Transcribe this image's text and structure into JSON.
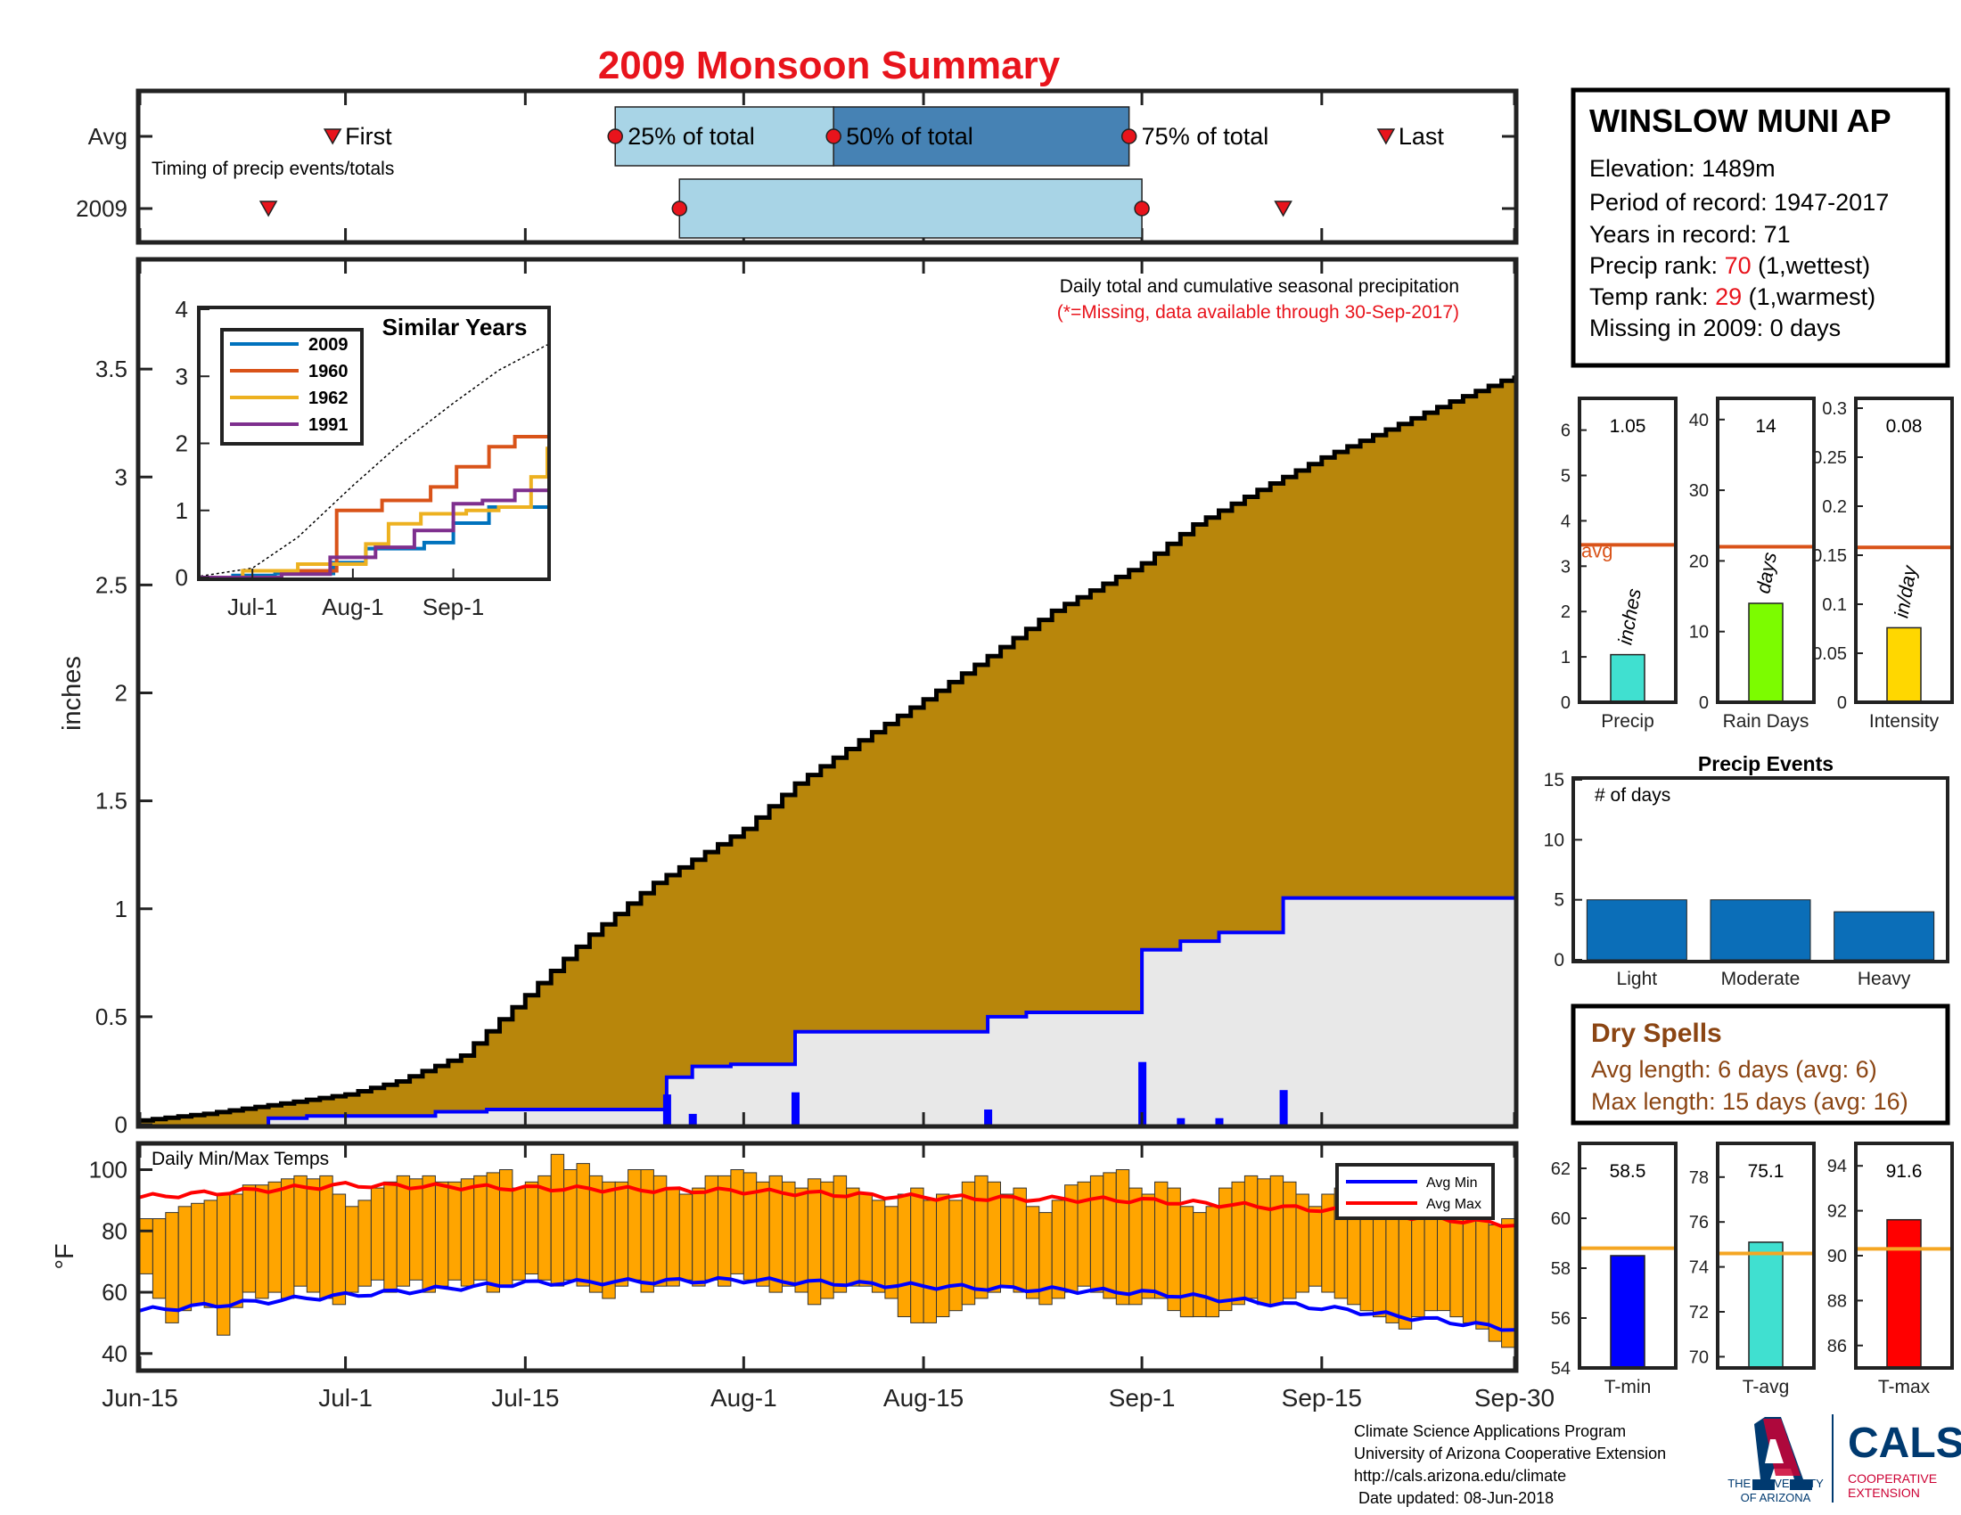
{
  "title": "2009 Monsoon Summary",
  "timing": {
    "row_labels": [
      "Avg",
      "2009"
    ],
    "caption": "Timing of precip events/totals",
    "first_label": "First",
    "last_label": "Last",
    "p25_label": "25% of total",
    "p50_label": "50% of total",
    "p75_label": "75% of total",
    "avg": {
      "first": "2009-06-30",
      "p25": "2009-07-22",
      "p50": "2009-08-08",
      "p75": "2009-08-31",
      "last": "2009-09-20"
    },
    "y2009": {
      "first": "2009-06-25",
      "p25": "2009-07-27",
      "p75": "2009-09-01",
      "last": "2009-09-12"
    }
  },
  "station": {
    "name": "WINSLOW MUNI AP",
    "elevation": "Elevation: 1489m",
    "period": "Period of record: 1947-2017",
    "years": "Years in record: 71",
    "precip_rank_prefix": "Precip rank: ",
    "precip_rank": "70",
    "precip_rank_suffix": " (1,wettest)",
    "temp_rank_prefix": "Temp rank: ",
    "temp_rank": "29",
    "temp_rank_suffix": " (1,warmest)",
    "missing": "Missing in 2009: 0 days"
  },
  "colors": {
    "title_red": "#e8141c",
    "cumulative_fill": "#b8860b",
    "season_fill": "#e8e8e8",
    "season_line": "#0000ff",
    "daily_bar": "#0000ff",
    "temp_bar": "#ffa500",
    "avg_min": "#0000ff",
    "avg_max": "#ff0000",
    "avg_line_small": "#d95319",
    "light_blue": "#a8d4e6",
    "steel_blue": "#4682b4",
    "events_blue": "#0b6eb8",
    "dry_brown": "#8b4513",
    "tavg_line": "#f5a623",
    "s2009": "#0072bd",
    "s1960": "#d95319",
    "s1962": "#edb120",
    "s1991": "#7e2f8e",
    "precip_bar": "#40e0d0",
    "raindays_bar": "#7cfc00",
    "intensity_bar": "#ffd700",
    "tmin_bar": "#0000ff",
    "tavg_bar": "#40e0d0",
    "tmax_bar": "#ff0000"
  },
  "chart_data": [
    {
      "id": "main",
      "type": "area",
      "ylabel": "inches",
      "ylim": [
        0,
        4
      ],
      "yticks": [
        "0",
        "0.5",
        "1",
        "1.5",
        "2",
        "2.5",
        "3",
        "3.5"
      ],
      "x_ticks": [
        "Jun-15",
        "Jul-1",
        "Jul-15",
        "Aug-1",
        "Aug-15",
        "Sep-1",
        "Sep-15",
        "Sep-30"
      ],
      "x_tick_dates": [
        "2009-06-15",
        "2009-07-01",
        "2009-07-15",
        "2009-08-01",
        "2009-08-15",
        "2009-09-01",
        "2009-09-15",
        "2009-09-30"
      ],
      "subtitle": "Daily total and cumulative seasonal precipitation",
      "note": "(*=Missing, data available through 30-Sep-2017)",
      "avg_cumulative": {
        "x": [
          "2009-06-15",
          "2009-06-20",
          "2009-06-25",
          "2009-07-01",
          "2009-07-05",
          "2009-07-10",
          "2009-07-15",
          "2009-07-20",
          "2009-07-25",
          "2009-08-01",
          "2009-08-05",
          "2009-08-10",
          "2009-08-15",
          "2009-08-20",
          "2009-08-25",
          "2009-09-01",
          "2009-09-05",
          "2009-09-10",
          "2009-09-15",
          "2009-09-20",
          "2009-09-25",
          "2009-09-30"
        ],
        "y": [
          0.02,
          0.05,
          0.09,
          0.14,
          0.2,
          0.32,
          0.6,
          0.88,
          1.12,
          1.37,
          1.58,
          1.78,
          1.97,
          2.17,
          2.38,
          2.6,
          2.78,
          2.94,
          3.09,
          3.22,
          3.35,
          3.47
        ]
      },
      "season_2009_cumulative": {
        "x": [
          "2009-06-25",
          "2009-06-28",
          "2009-07-08",
          "2009-07-12",
          "2009-07-26",
          "2009-07-28",
          "2009-07-31",
          "2009-08-05",
          "2009-08-20",
          "2009-08-23",
          "2009-09-01",
          "2009-09-04",
          "2009-09-07",
          "2009-09-12",
          "2009-09-30"
        ],
        "y": [
          0.03,
          0.04,
          0.06,
          0.07,
          0.22,
          0.27,
          0.28,
          0.43,
          0.5,
          0.52,
          0.81,
          0.85,
          0.89,
          1.05,
          1.05
        ]
      },
      "daily_precip": {
        "x": [
          "2009-07-26",
          "2009-07-28",
          "2009-08-05",
          "2009-08-20",
          "2009-09-01",
          "2009-09-04",
          "2009-09-07",
          "2009-09-12"
        ],
        "y": [
          0.14,
          0.05,
          0.15,
          0.07,
          0.29,
          0.03,
          0.03,
          0.16
        ]
      }
    },
    {
      "id": "similar",
      "type": "line",
      "title": "Similar Years",
      "ylim": [
        0,
        4
      ],
      "yticks": [
        "0",
        "1",
        "2",
        "3",
        "4"
      ],
      "x_ticks": [
        "Jul-1",
        "Aug-1",
        "Sep-1"
      ],
      "x_tick_dates": [
        "2009-07-01",
        "2009-08-01",
        "2009-09-01"
      ],
      "series": [
        {
          "name": "2009",
          "x": [
            "2009-06-15",
            "2009-06-25",
            "2009-07-08",
            "2009-07-26",
            "2009-08-05",
            "2009-08-23",
            "2009-09-01",
            "2009-09-12",
            "2009-09-30"
          ],
          "y": [
            0,
            0.03,
            0.06,
            0.22,
            0.43,
            0.52,
            0.81,
            1.05,
            1.05
          ]
        },
        {
          "name": "1960",
          "x": [
            "2009-06-15",
            "2009-07-10",
            "2009-07-27",
            "2009-08-10",
            "2009-08-25",
            "2009-09-02",
            "2009-09-12",
            "2009-09-20",
            "2009-09-30"
          ],
          "y": [
            0,
            0.1,
            1.0,
            1.15,
            1.35,
            1.65,
            1.95,
            2.1,
            2.1
          ]
        },
        {
          "name": "1962",
          "x": [
            "2009-06-15",
            "2009-06-28",
            "2009-07-15",
            "2009-08-05",
            "2009-08-12",
            "2009-08-22",
            "2009-09-05",
            "2009-09-15",
            "2009-09-25",
            "2009-09-30"
          ],
          "y": [
            0,
            0.1,
            0.2,
            0.5,
            0.8,
            0.95,
            1.0,
            1.05,
            1.5,
            1.95
          ]
        },
        {
          "name": "1991",
          "x": [
            "2009-06-15",
            "2009-07-10",
            "2009-07-25",
            "2009-08-08",
            "2009-08-20",
            "2009-09-01",
            "2009-09-10",
            "2009-09-20",
            "2009-09-30"
          ],
          "y": [
            0,
            0.05,
            0.3,
            0.45,
            0.7,
            1.1,
            1.15,
            1.3,
            1.3
          ]
        }
      ],
      "avg_dotted": {
        "x": [
          "2009-06-15",
          "2009-07-01",
          "2009-07-15",
          "2009-08-01",
          "2009-08-15",
          "2009-09-01",
          "2009-09-15",
          "2009-09-30"
        ],
        "y": [
          0.02,
          0.14,
          0.6,
          1.37,
          1.97,
          2.6,
          3.09,
          3.47
        ]
      }
    },
    {
      "id": "temps",
      "type": "bar",
      "title": "Daily Min/Max Temps",
      "ylabel": "°F",
      "ylim": [
        35,
        108
      ],
      "yticks": [
        "40",
        "60",
        "80",
        "100"
      ],
      "legend": [
        "Avg Min",
        "Avg Max"
      ],
      "start_date": "2009-06-15",
      "tmin": [
        66,
        58,
        50,
        54,
        56,
        55,
        46,
        55,
        60,
        58,
        60,
        58,
        62,
        60,
        58,
        56,
        60,
        62,
        64,
        60,
        62,
        64,
        60,
        62,
        64,
        62,
        64,
        60,
        62,
        64,
        66,
        64,
        62,
        64,
        62,
        60,
        58,
        62,
        64,
        60,
        62,
        62,
        64,
        62,
        64,
        62,
        66,
        64,
        62,
        60,
        62,
        60,
        56,
        58,
        60,
        62,
        62,
        60,
        58,
        52,
        50,
        50,
        52,
        54,
        56,
        58,
        60,
        62,
        60,
        58,
        56,
        58,
        60,
        62,
        60,
        58,
        56,
        56,
        58,
        58,
        54,
        52,
        52,
        52,
        54,
        56,
        58,
        56,
        56,
        58,
        60,
        62,
        60,
        58,
        56,
        54,
        52,
        50,
        48,
        52,
        54,
        54,
        52,
        50,
        48,
        44,
        42,
        40,
        42,
        44,
        44,
        46,
        46,
        48,
        44
      ],
      "tmax": [
        84,
        84,
        86,
        88,
        89,
        90,
        92,
        92,
        95,
        95,
        96,
        97,
        98,
        97,
        98,
        92,
        88,
        90,
        94,
        96,
        98,
        97,
        98,
        96,
        96,
        97,
        98,
        99,
        100,
        94,
        96,
        98,
        105,
        100,
        102,
        98,
        96,
        96,
        100,
        100,
        98,
        94,
        92,
        94,
        98,
        98,
        100,
        99,
        96,
        98,
        96,
        94,
        97,
        96,
        98,
        94,
        92,
        90,
        88,
        92,
        94,
        90,
        92,
        90,
        96,
        98,
        96,
        92,
        94,
        88,
        86,
        90,
        95,
        96,
        98,
        99,
        100,
        94,
        92,
        96,
        94,
        88,
        86,
        88,
        94,
        96,
        98,
        97,
        98,
        96,
        92,
        88,
        92,
        94,
        90,
        92,
        88,
        86,
        86,
        90,
        92,
        86,
        90,
        92,
        88,
        82,
        84,
        80,
        82,
        80,
        82,
        84,
        80,
        80,
        82
      ],
      "avg_min": {
        "x": [
          "2009-06-15",
          "2009-07-01",
          "2009-07-15",
          "2009-08-01",
          "2009-08-15",
          "2009-09-01",
          "2009-09-15",
          "2009-09-30"
        ],
        "y": [
          54,
          59,
          63,
          64,
          62,
          60,
          55,
          48
        ]
      },
      "avg_max": {
        "x": [
          "2009-06-15",
          "2009-07-01",
          "2009-07-15",
          "2009-08-01",
          "2009-08-15",
          "2009-09-01",
          "2009-09-15",
          "2009-09-30"
        ],
        "y": [
          91,
          95,
          94,
          93,
          91,
          90,
          87,
          82
        ]
      }
    },
    {
      "id": "precip_stats",
      "type": "bar",
      "panels": [
        {
          "name": "Precip",
          "value": 1.05,
          "label": "1.05",
          "avg": 3.47,
          "ylim": [
            0,
            6.7
          ],
          "yticks": [
            "0",
            "1",
            "2",
            "3",
            "4",
            "5",
            "6"
          ],
          "unit": "inches",
          "avg_label": "avg"
        },
        {
          "name": "Rain Days",
          "value": 14,
          "label": "14",
          "avg": 22,
          "ylim": [
            0,
            43
          ],
          "yticks": [
            "0",
            "10",
            "20",
            "30",
            "40"
          ],
          "unit": "days"
        },
        {
          "name": "Intensity",
          "value": 0.076,
          "label": "0.08",
          "avg": 0.158,
          "ylim": [
            0,
            0.31
          ],
          "yticks": [
            "0",
            "0.05",
            "0.1",
            "0.15",
            "0.2",
            "0.25",
            "0.3"
          ],
          "unit": "in/day"
        }
      ]
    },
    {
      "id": "events",
      "type": "bar",
      "title": "Precip Events",
      "ylabel_inside": "# of days",
      "categories": [
        "Light",
        "Moderate",
        "Heavy"
      ],
      "values": [
        5,
        5,
        4
      ],
      "ylim": [
        0,
        15
      ],
      "yticks": [
        "0",
        "5",
        "10",
        "15"
      ]
    },
    {
      "id": "temp_stats",
      "type": "bar",
      "panels": [
        {
          "name": "T-min",
          "value": 58.5,
          "label": "58.5",
          "avg": 58.8,
          "ylim": [
            54,
            63
          ],
          "yticks": [
            "54",
            "56",
            "58",
            "60",
            "62"
          ]
        },
        {
          "name": "T-avg",
          "value": 75.1,
          "label": "75.1",
          "avg": 74.6,
          "ylim": [
            69.5,
            79.5
          ],
          "yticks": [
            "70",
            "72",
            "74",
            "76",
            "78"
          ]
        },
        {
          "name": "T-max",
          "value": 91.6,
          "label": "91.6",
          "avg": 90.3,
          "ylim": [
            85,
            95
          ],
          "yticks": [
            "86",
            "88",
            "90",
            "92",
            "94"
          ]
        }
      ]
    }
  ],
  "dry_spells": {
    "title": "Dry Spells",
    "avg_length": "Avg length: 6 days (avg: 6)",
    "max_length": "Max length: 15 days (avg: 16)"
  },
  "footer": {
    "line1": "Climate Science Applications Program",
    "line2": "University of Arizona Cooperative Extension",
    "line3": "http://cals.arizona.edu/climate",
    "line4": " Date updated: 08-Jun-2018",
    "ua_logo": "THE UNIVERSITY OF ARIZONA",
    "ua_line1": "THE UNIVERSITY",
    "ua_line2": "OF ARIZONA",
    "cals_logo": "CALS",
    "cals_sub1": "COOPERATIVE",
    "cals_sub2": "EXTENSION"
  }
}
